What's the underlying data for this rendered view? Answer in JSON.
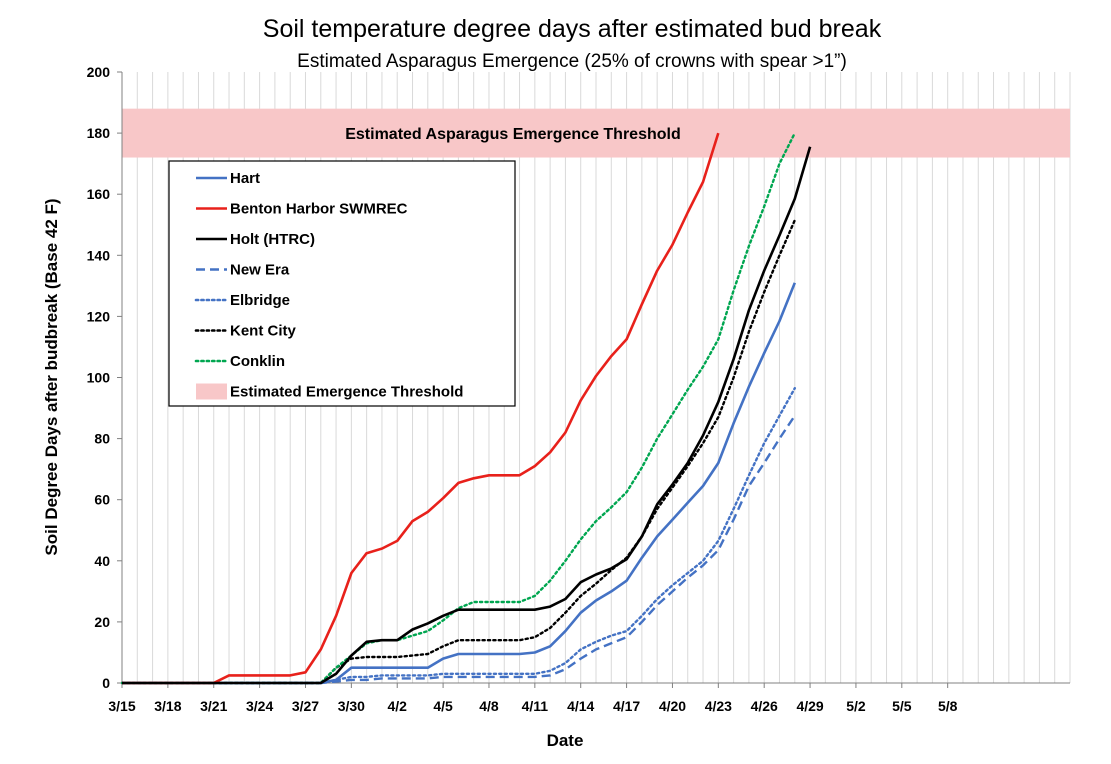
{
  "chart_data": {
    "type": "line",
    "title": "Soil temperature degree days after estimated bud break",
    "subtitle": "Estimated Asparagus Emergence (25% of crowns with spear >1”)",
    "xlabel": "Date",
    "ylabel": "Soil Degree Days after budbreak (Base 42 F)",
    "ylim": [
      0,
      200
    ],
    "yticks": [
      0,
      20,
      40,
      60,
      80,
      100,
      120,
      140,
      160,
      180,
      200
    ],
    "xlim_days": [
      0,
      62
    ],
    "x_tick_labels": [
      "3/15",
      "3/18",
      "3/21",
      "3/24",
      "3/27",
      "3/30",
      "4/2",
      "4/5",
      "4/8",
      "4/11",
      "4/14",
      "4/17",
      "4/20",
      "4/23",
      "4/26",
      "4/29",
      "5/2",
      "5/5",
      "5/8"
    ],
    "x_tick_days": [
      0,
      3,
      6,
      9,
      12,
      15,
      18,
      21,
      24,
      27,
      30,
      33,
      36,
      39,
      42,
      45,
      48,
      51,
      54
    ],
    "x_unit_note": "x values are days since 3/15",
    "threshold_band": {
      "min": 172,
      "max": 188,
      "label": "Estimated Asparagus Emergence Threshold",
      "color": "#f8c7c8"
    },
    "grid": "vertical",
    "legend_position": "upper-left",
    "series": [
      {
        "name": "Hart",
        "color": "#4472c4",
        "dash": "solid",
        "x": [
          0,
          13,
          14,
          15,
          16,
          17,
          18,
          19,
          20,
          21,
          22,
          23,
          24,
          25,
          26,
          27,
          28,
          29,
          30,
          31,
          32,
          33,
          34,
          35,
          36,
          37,
          38,
          39,
          40,
          41,
          42,
          43,
          44
        ],
        "y": [
          0,
          0,
          1,
          5,
          5,
          5,
          5,
          5,
          5,
          8,
          9.5,
          9.5,
          9.5,
          9.5,
          9.5,
          10,
          12,
          17,
          23,
          27,
          30,
          33.5,
          41,
          48,
          53.5,
          59,
          64.5,
          72,
          85,
          97,
          108,
          118.5,
          131
        ]
      },
      {
        "name": "Benton Harbor SWMREC",
        "color": "#e8211b",
        "dash": "solid",
        "x": [
          0,
          6,
          7,
          8,
          9,
          10,
          11,
          12,
          13,
          14,
          15,
          16,
          17,
          18,
          19,
          20,
          21,
          22,
          23,
          24,
          25,
          26,
          27,
          28,
          29,
          30,
          31,
          32,
          33,
          34,
          35,
          36,
          37,
          38,
          39
        ],
        "y": [
          0,
          0,
          2.5,
          2.5,
          2.5,
          2.5,
          2.5,
          3.5,
          11,
          22,
          36,
          42.5,
          44,
          46.5,
          53,
          56,
          60.5,
          65.5,
          67,
          68,
          68,
          68,
          71,
          75.5,
          82,
          92.5,
          100.5,
          107,
          112.5,
          124,
          135,
          143.5,
          154,
          164,
          180
        ]
      },
      {
        "name": "Holt (HTRC)",
        "color": "#000000",
        "dash": "solid",
        "x": [
          0,
          13,
          14,
          15,
          16,
          17,
          18,
          19,
          20,
          21,
          22,
          23,
          24,
          25,
          26,
          27,
          28,
          29,
          30,
          31,
          32,
          33,
          34,
          35,
          36,
          37,
          38,
          39,
          40,
          41,
          42,
          43,
          44,
          45
        ],
        "y": [
          0,
          0,
          3,
          9,
          13.5,
          14,
          14,
          17.5,
          19.5,
          22,
          24,
          24,
          24,
          24,
          24,
          24,
          25,
          27.5,
          33,
          35.5,
          37.5,
          40.5,
          48,
          58.5,
          65,
          72,
          81,
          92,
          106,
          122,
          135,
          146.5,
          158.5,
          175.5
        ]
      },
      {
        "name": "New Era",
        "color": "#4472c4",
        "dash": "dashed",
        "x": [
          0,
          13,
          14,
          15,
          16,
          17,
          18,
          19,
          20,
          21,
          22,
          23,
          24,
          25,
          26,
          27,
          28,
          29,
          30,
          31,
          32,
          33,
          34,
          35,
          36,
          37,
          38,
          39,
          40,
          41,
          42,
          43,
          44
        ],
        "y": [
          0,
          0,
          0.5,
          1,
          1,
          1.5,
          1.5,
          1.5,
          1.5,
          2,
          2,
          2,
          2,
          2,
          2,
          2,
          2.5,
          4.5,
          8,
          11,
          13,
          15,
          20,
          25.5,
          30,
          34.5,
          38.5,
          43.5,
          53.5,
          64.5,
          72,
          80,
          87.5
        ]
      },
      {
        "name": "Elbridge",
        "color": "#4472c4",
        "dash": "dotted",
        "x": [
          0,
          13,
          14,
          15,
          16,
          17,
          18,
          19,
          20,
          21,
          22,
          23,
          24,
          25,
          26,
          27,
          28,
          29,
          30,
          31,
          32,
          33,
          34,
          35,
          36,
          37,
          38,
          39,
          40,
          41,
          42,
          43,
          44
        ],
        "y": [
          0,
          0,
          1,
          2,
          2,
          2.5,
          2.5,
          2.5,
          2.5,
          3,
          3,
          3,
          3,
          3,
          3,
          3,
          4,
          6.5,
          11,
          13.5,
          15.5,
          17,
          22,
          27.5,
          32,
          36,
          40,
          46.5,
          57,
          68,
          78.5,
          87.5,
          96.5
        ]
      },
      {
        "name": "Kent City",
        "color": "#000000",
        "dash": "dotted",
        "x": [
          0,
          13,
          14,
          15,
          16,
          17,
          18,
          19,
          20,
          21,
          22,
          23,
          24,
          25,
          26,
          27,
          28,
          29,
          30,
          31,
          32,
          33,
          34,
          35,
          36,
          37,
          38,
          39,
          40,
          41,
          42,
          43,
          44
        ],
        "y": [
          0,
          0,
          5,
          8,
          8.5,
          8.5,
          8.5,
          9,
          9.5,
          12,
          14,
          14,
          14,
          14,
          14,
          15,
          18,
          23,
          28.5,
          32.5,
          37,
          41,
          48,
          57,
          64,
          71,
          78.5,
          87,
          100,
          115,
          128,
          140,
          151.5
        ]
      },
      {
        "name": "Conklin",
        "color": "#00a650",
        "dash": "dotted",
        "x": [
          0,
          13,
          14,
          15,
          16,
          17,
          18,
          19,
          20,
          21,
          22,
          23,
          24,
          25,
          26,
          27,
          28,
          29,
          30,
          31,
          32,
          33,
          34,
          35,
          36,
          37,
          38,
          39,
          40,
          41,
          42,
          43,
          44
        ],
        "y": [
          0,
          0,
          5,
          9,
          13,
          14,
          14,
          15.5,
          17,
          20.5,
          24.5,
          26.5,
          26.5,
          26.5,
          26.5,
          28.5,
          33.5,
          40,
          47,
          53,
          57.5,
          62.5,
          70.5,
          80,
          88,
          96,
          103.5,
          112.5,
          128.5,
          143,
          156,
          170,
          180
        ]
      }
    ],
    "legend": [
      {
        "label": "Hart",
        "color": "#4472c4",
        "dash": "solid",
        "kind": "line"
      },
      {
        "label": "Benton Harbor SWMREC",
        "color": "#e8211b",
        "dash": "solid",
        "kind": "line"
      },
      {
        "label": "Holt (HTRC)",
        "color": "#000000",
        "dash": "solid",
        "kind": "line"
      },
      {
        "label": "New Era",
        "color": "#4472c4",
        "dash": "dashed",
        "kind": "line"
      },
      {
        "label": "Elbridge",
        "color": "#4472c4",
        "dash": "dotted",
        "kind": "line"
      },
      {
        "label": "Kent City",
        "color": "#000000",
        "dash": "dotted",
        "kind": "line"
      },
      {
        "label": "Conklin",
        "color": "#00a650",
        "dash": "dotted",
        "kind": "line"
      },
      {
        "label": "Estimated Emergence Threshold",
        "color": "#f8c7c8",
        "dash": "solid",
        "kind": "band"
      }
    ]
  }
}
